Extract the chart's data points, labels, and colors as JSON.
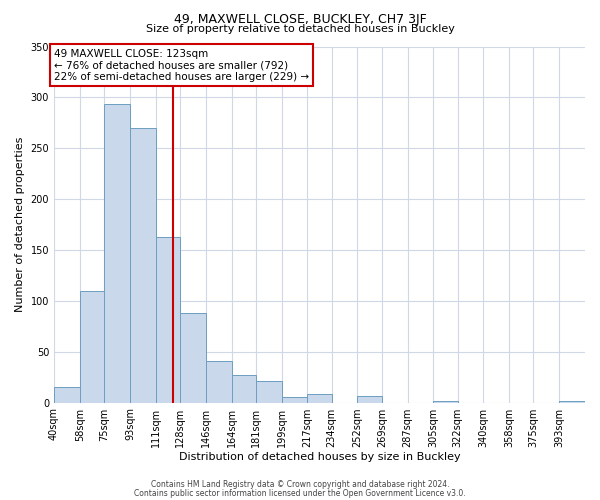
{
  "title": "49, MAXWELL CLOSE, BUCKLEY, CH7 3JF",
  "subtitle": "Size of property relative to detached houses in Buckley",
  "xlabel": "Distribution of detached houses by size in Buckley",
  "ylabel": "Number of detached properties",
  "bin_labels": [
    "40sqm",
    "58sqm",
    "75sqm",
    "93sqm",
    "111sqm",
    "128sqm",
    "146sqm",
    "164sqm",
    "181sqm",
    "199sqm",
    "217sqm",
    "234sqm",
    "252sqm",
    "269sqm",
    "287sqm",
    "305sqm",
    "322sqm",
    "340sqm",
    "358sqm",
    "375sqm",
    "393sqm"
  ],
  "bin_edges": [
    40,
    58,
    75,
    93,
    111,
    128,
    146,
    164,
    181,
    199,
    217,
    234,
    252,
    269,
    287,
    305,
    322,
    340,
    358,
    375,
    393
  ],
  "bar_heights": [
    15,
    110,
    293,
    270,
    163,
    88,
    41,
    27,
    21,
    5,
    8,
    0,
    6,
    0,
    0,
    2,
    0,
    0,
    0,
    0,
    2
  ],
  "bar_color": "#c9d9eb",
  "bar_edge_color": "#6d9ec0",
  "vline_x": 123,
  "vline_color": "#cc0000",
  "ylim": [
    0,
    350
  ],
  "yticks": [
    0,
    50,
    100,
    150,
    200,
    250,
    300,
    350
  ],
  "annotation_text": "49 MAXWELL CLOSE: 123sqm\n← 76% of detached houses are smaller (792)\n22% of semi-detached houses are larger (229) →",
  "annotation_box_color": "#ffffff",
  "annotation_box_edge": "#cc0000",
  "footer_line1": "Contains HM Land Registry data © Crown copyright and database right 2024.",
  "footer_line2": "Contains public sector information licensed under the Open Government Licence v3.0.",
  "background_color": "#ffffff",
  "grid_color": "#d0d8e8",
  "title_fontsize": 9,
  "subtitle_fontsize": 8,
  "ylabel_fontsize": 8,
  "xlabel_fontsize": 8,
  "tick_fontsize": 7,
  "footer_fontsize": 5.5,
  "annotation_fontsize": 7.5
}
